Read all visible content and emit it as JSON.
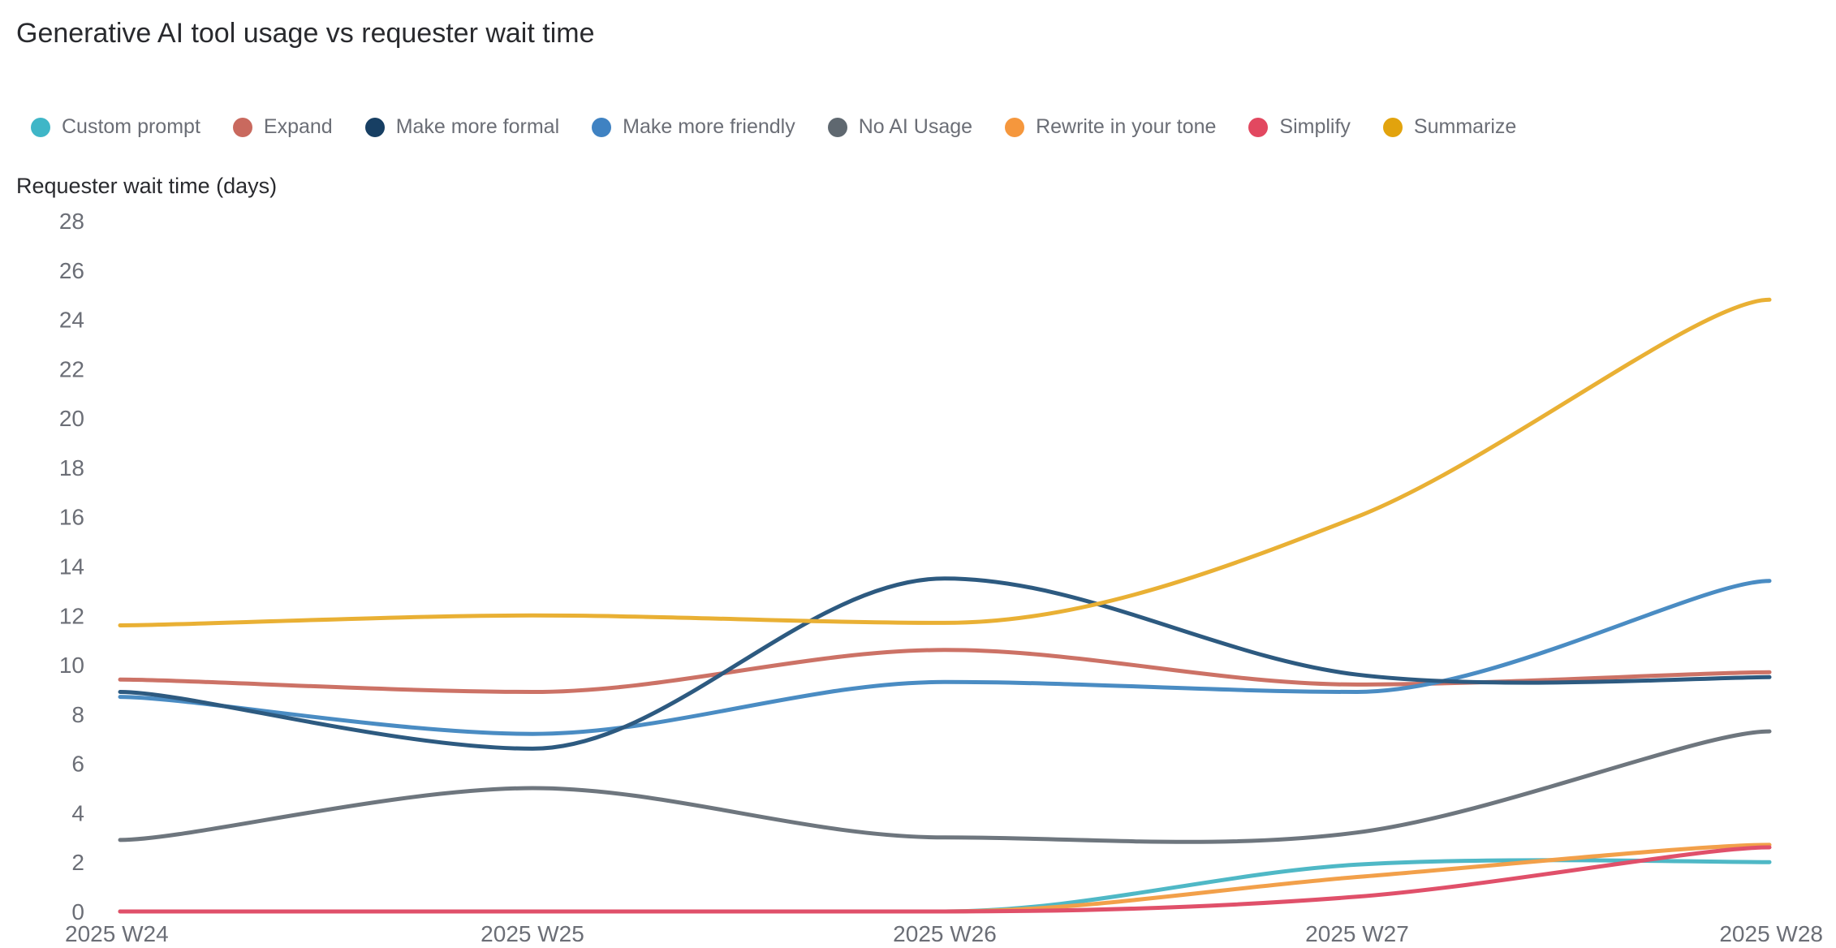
{
  "chart_data": {
    "type": "line",
    "title": "Generative AI tool usage vs requester wait time",
    "ylabel": "Requester wait time (days)",
    "xlabel": "",
    "categories": [
      "2025 W24",
      "2025 W25",
      "2025 W26",
      "2025 W27",
      "2025 W28"
    ],
    "ylim": [
      0,
      28
    ],
    "yticks": [
      0,
      2,
      4,
      6,
      8,
      10,
      12,
      14,
      16,
      18,
      20,
      22,
      24,
      26,
      28
    ],
    "grid": false,
    "legend_position": "top-left",
    "series": [
      {
        "name": "Custom prompt",
        "color": "#4fb8c6",
        "values": [
          0,
          0,
          0,
          1.9,
          2.0
        ]
      },
      {
        "name": "Expand",
        "color": "#cc7266",
        "values": [
          9.4,
          8.9,
          10.6,
          9.2,
          9.7
        ]
      },
      {
        "name": "Make more formal",
        "color": "#2d5a80",
        "values": [
          8.9,
          6.6,
          13.5,
          9.6,
          9.5
        ]
      },
      {
        "name": "Make more friendly",
        "color": "#4a8cc3",
        "values": [
          8.7,
          7.2,
          9.3,
          8.9,
          13.4
        ]
      },
      {
        "name": "No AI Usage",
        "color": "#6e767e",
        "values": [
          2.9,
          5.0,
          3.0,
          3.2,
          7.3
        ]
      },
      {
        "name": "Rewrite in your tone",
        "color": "#f2a04a",
        "values": [
          0,
          0,
          0,
          1.4,
          2.7
        ]
      },
      {
        "name": "Simplify",
        "color": "#e0506a",
        "values": [
          0,
          0,
          0,
          0.6,
          2.6
        ]
      },
      {
        "name": "Summarize",
        "color": "#e9b034",
        "values": [
          11.6,
          12.0,
          11.7,
          16.0,
          24.8
        ]
      }
    ]
  },
  "legend_colors": {
    "Custom prompt": "#3fb6c7",
    "Expand": "#c9695e",
    "Make more formal": "#173f63",
    "Make more friendly": "#3f82c2",
    "No AI Usage": "#5f6870",
    "Rewrite in your tone": "#f5973d",
    "Simplify": "#e24860",
    "Summarize": "#e2a30d"
  }
}
